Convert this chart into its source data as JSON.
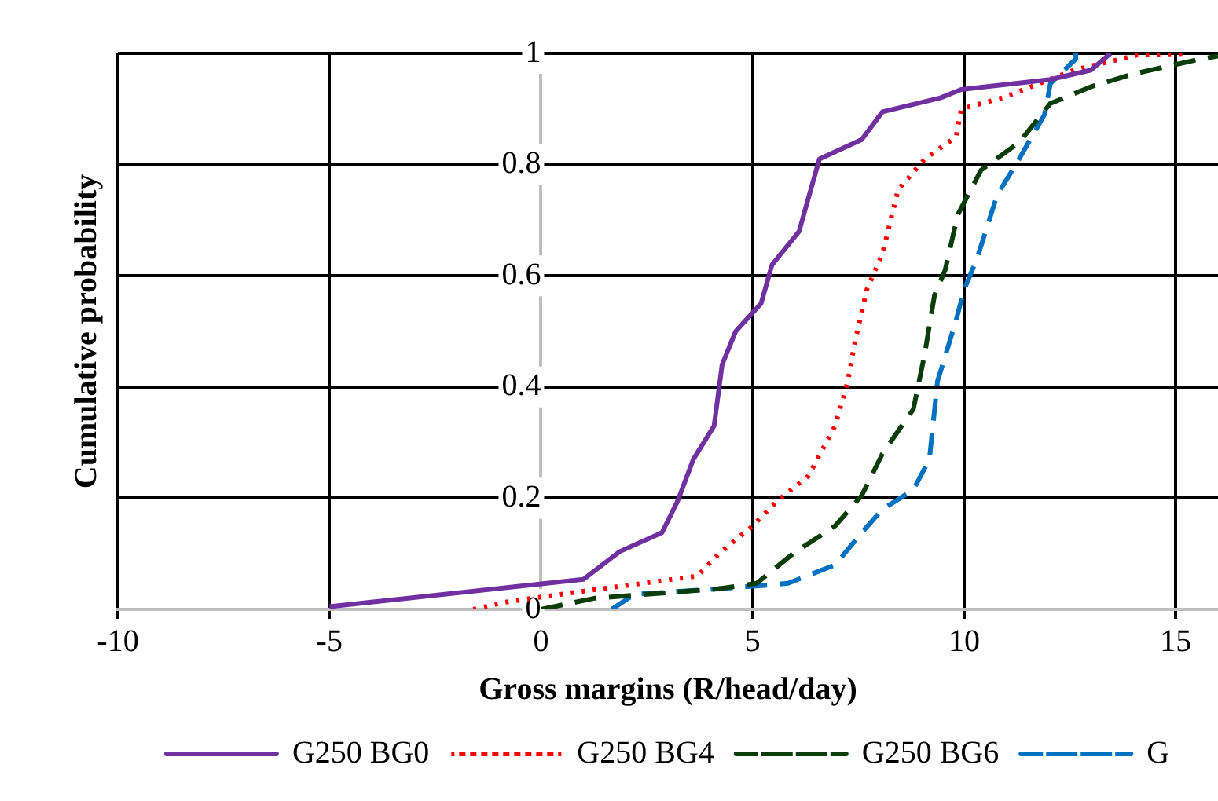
{
  "chart_data": {
    "type": "line",
    "xlabel": "Gross margins (R/head/day)",
    "ylabel": "Cumulative probability",
    "xlim": [
      -10,
      16
    ],
    "xticks": [
      -10,
      -5,
      0,
      5,
      10,
      15
    ],
    "ylim": [
      0,
      1
    ],
    "yticks": [
      0,
      0.2,
      0.4,
      0.6,
      0.8,
      1
    ],
    "grid": true,
    "legend": "bottom",
    "marker": "none",
    "series": [
      {
        "name": "G250 BG0",
        "color": "#7030a0",
        "line_style": "solid",
        "x": [
          -5,
          1.0,
          1.86,
          2.86,
          3.23,
          3.6,
          4.09,
          4.28,
          4.6,
          5.2,
          5.46,
          6.1,
          6.32,
          6.58,
          7.58,
          8.07,
          9.44,
          9.93,
          12.04,
          13.0,
          13.46
        ],
        "values": [
          0.005,
          0.054,
          0.104,
          0.138,
          0.195,
          0.27,
          0.33,
          0.44,
          0.5,
          0.55,
          0.62,
          0.68,
          0.74,
          0.81,
          0.845,
          0.895,
          0.92,
          0.935,
          0.953,
          0.97,
          1.0
        ]
      },
      {
        "name": "G250 BG4",
        "color": "#ff0000",
        "line_style": "dotted",
        "x": [
          -1.6,
          -0.85,
          0.74,
          3.7,
          4.2,
          5.0,
          5.58,
          6.32,
          6.95,
          7.25,
          7.43,
          7.7,
          8.07,
          8.44,
          9.07,
          9.81,
          9.93,
          10.9,
          12.6,
          14.1,
          15.3
        ],
        "values": [
          0,
          0.013,
          0.03,
          0.06,
          0.1,
          0.15,
          0.195,
          0.24,
          0.33,
          0.41,
          0.485,
          0.575,
          0.64,
          0.755,
          0.81,
          0.85,
          0.9,
          0.92,
          0.97,
          0.997,
          1.0
        ]
      },
      {
        "name": "G250 BG6",
        "color": "#0b3d0b",
        "line_style": "dashed",
        "x": [
          0,
          1.26,
          4.2,
          5.1,
          5.95,
          6.95,
          7.58,
          8.07,
          8.8,
          9.07,
          9.3,
          9.55,
          9.85,
          10.4,
          11.3,
          12.04,
          13.0,
          14.0,
          15.6,
          16.0
        ],
        "values": [
          0,
          0.02,
          0.037,
          0.047,
          0.1,
          0.15,
          0.205,
          0.28,
          0.36,
          0.46,
          0.565,
          0.61,
          0.71,
          0.79,
          0.84,
          0.91,
          0.94,
          0.963,
          0.99,
          0.995
        ]
      },
      {
        "name": "G",
        "color": "#0070c0",
        "line_style": "dashed",
        "x": [
          1.67,
          2.2,
          4.2,
          5.46,
          5.84,
          6.95,
          7.58,
          8.07,
          8.8,
          9.18,
          9.37,
          9.81,
          10.0,
          10.3,
          10.78,
          11.3,
          11.9,
          12.04,
          12.64,
          12.64
        ],
        "values": [
          0,
          0.027,
          0.037,
          0.044,
          0.047,
          0.08,
          0.138,
          0.18,
          0.215,
          0.27,
          0.41,
          0.52,
          0.575,
          0.63,
          0.745,
          0.81,
          0.89,
          0.946,
          0.99,
          1.0
        ]
      }
    ]
  }
}
